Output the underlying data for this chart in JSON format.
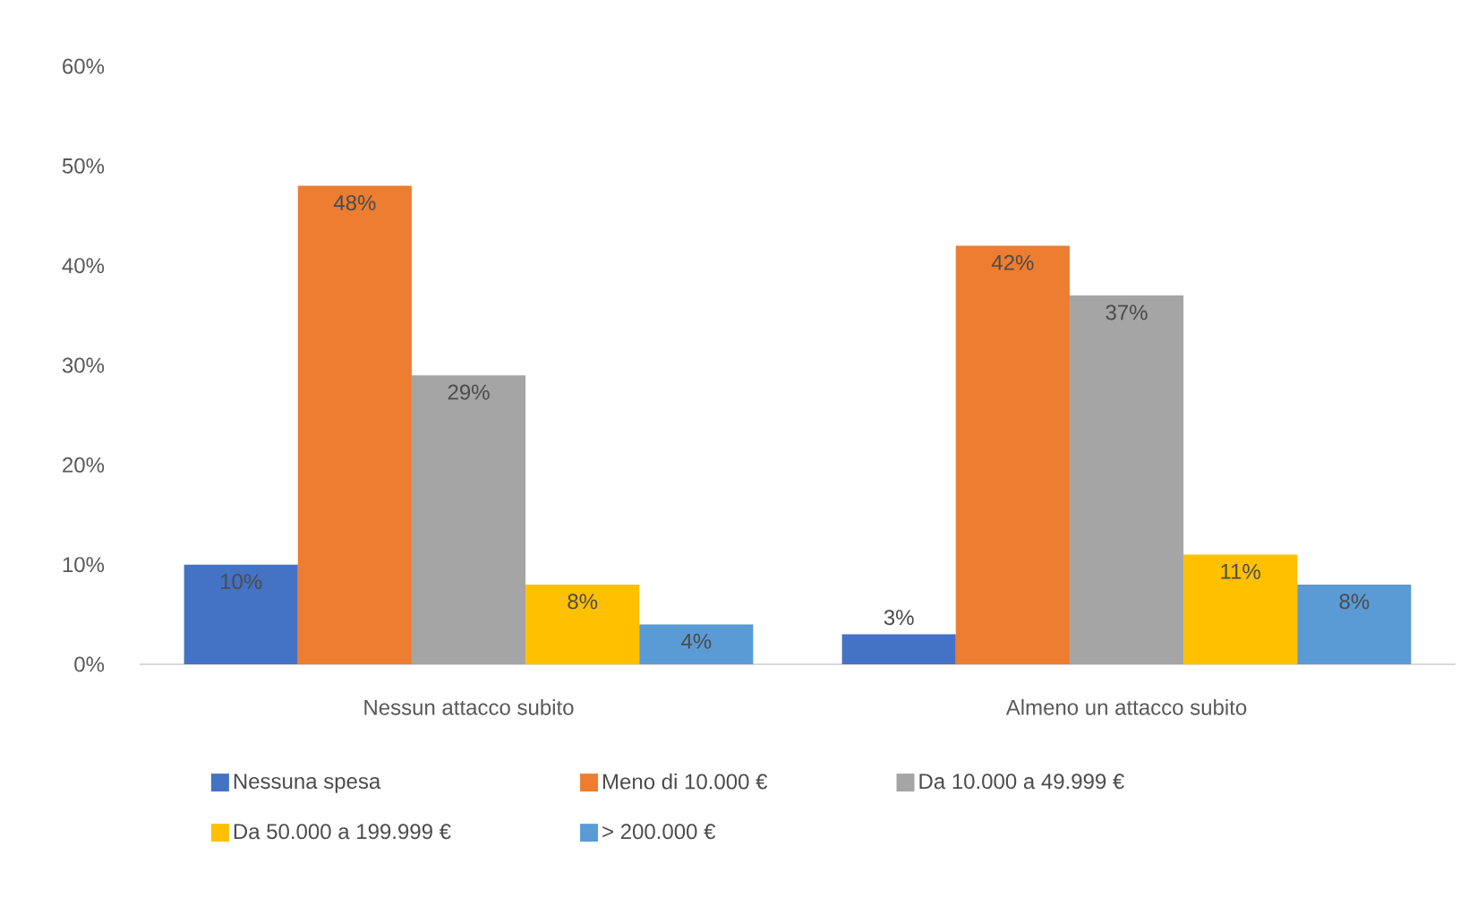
{
  "chart_data": {
    "type": "bar",
    "categories": [
      "Nessun attacco subito",
      "Almeno un attacco subito"
    ],
    "series": [
      {
        "name": "Nessuna spesa",
        "color": "#4472c4",
        "values": [
          10,
          3
        ],
        "value_labels": [
          "10%",
          "3%"
        ]
      },
      {
        "name": "Meno di 10.000 €",
        "color": "#ed7d31",
        "values": [
          48,
          42
        ],
        "value_labels": [
          "48%",
          "42%"
        ]
      },
      {
        "name": "Da 10.000 a 49.999 €",
        "color": "#a5a5a5",
        "values": [
          29,
          37
        ],
        "value_labels": [
          "29%",
          "37%"
        ]
      },
      {
        "name": "Da 50.000 a 199.999 €",
        "color": "#ffc000",
        "values": [
          8,
          11
        ],
        "value_labels": [
          "8%",
          "11%"
        ]
      },
      {
        "name": "> 200.000 €",
        "color": "#5b9bd5",
        "values": [
          4,
          8
        ],
        "value_labels": [
          "4%",
          "8%"
        ]
      }
    ],
    "ylim": [
      0,
      60
    ],
    "yticks": [
      {
        "value": 0,
        "label": "0%"
      },
      {
        "value": 10,
        "label": "10%"
      },
      {
        "value": 20,
        "label": "20%"
      },
      {
        "value": 30,
        "label": "30%"
      },
      {
        "value": 40,
        "label": "40%"
      },
      {
        "value": 50,
        "label": "50%"
      },
      {
        "value": 60,
        "label": "60%"
      }
    ],
    "grid": false,
    "legend": "bottom"
  }
}
